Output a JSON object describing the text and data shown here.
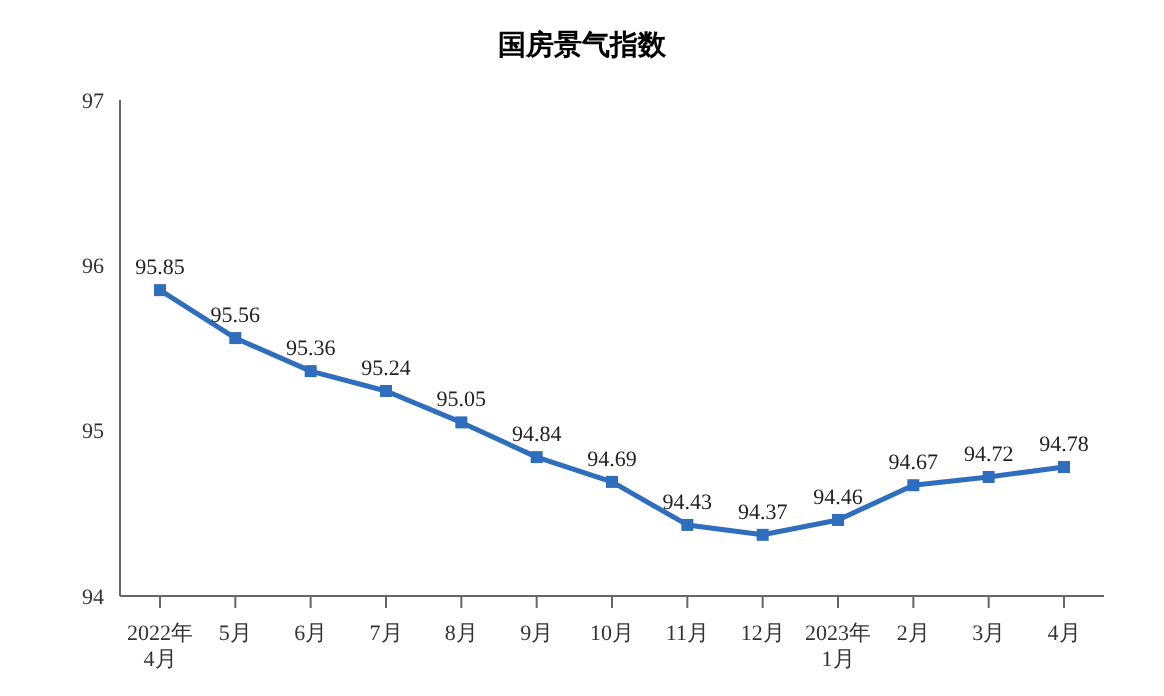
{
  "chart_data": {
    "type": "line",
    "title": "国房景气指数",
    "categories": [
      "2022年\n4月",
      "5月",
      "6月",
      "7月",
      "8月",
      "9月",
      "10月",
      "11月",
      "12月",
      "2023年\n1月",
      "2月",
      "3月",
      "4月"
    ],
    "series": [
      {
        "color": "#2e6ebd",
        "values": [
          95.85,
          95.56,
          95.36,
          95.24,
          95.05,
          94.84,
          94.69,
          94.43,
          94.37,
          94.46,
          94.67,
          94.72,
          94.78
        ]
      }
    ],
    "ylim": [
      94,
      97
    ],
    "yticks": [
      94,
      95,
      96,
      97
    ],
    "marker": "square",
    "line_style": "solid",
    "data_labels": true
  }
}
